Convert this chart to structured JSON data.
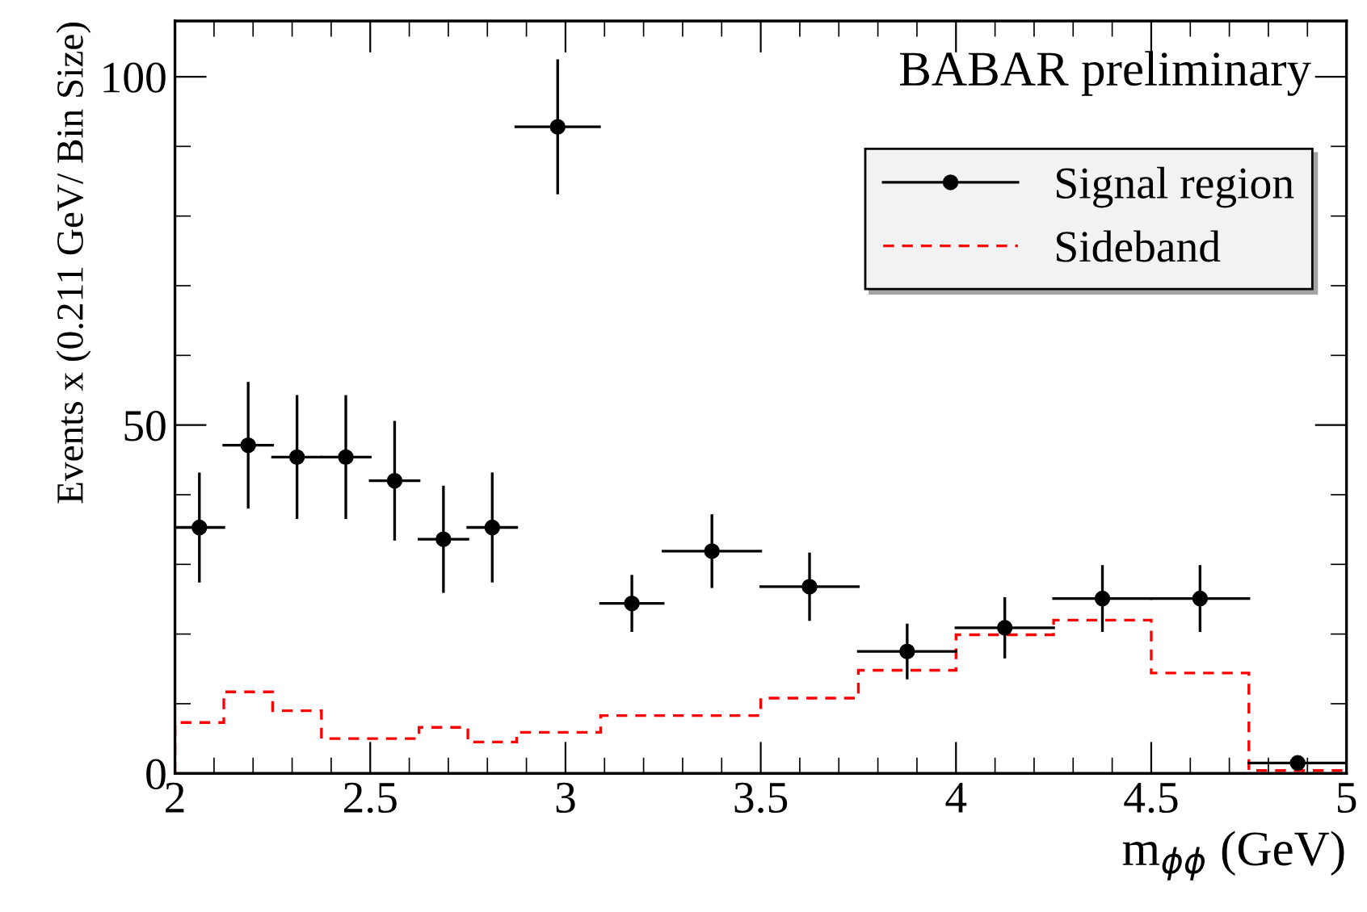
{
  "chart_data": {
    "type": "scatter",
    "xlabel": "m$_{ϕϕ}$ (GeV)",
    "ylabel": "Events x (0.211 GeV/ Bin Size)",
    "xlim": [
      2,
      5
    ],
    "xticks": [
      2,
      2.5,
      3,
      3.5,
      4,
      4.5,
      5
    ],
    "ylim": [
      0,
      108
    ],
    "yticks": [
      0,
      50,
      100
    ],
    "grid": false,
    "legend": "top right",
    "marker": "circle",
    "annotations": [
      "BABAR preliminary"
    ],
    "series": [
      {
        "name": "Signal region",
        "color": "#000000",
        "x": [
          2.0625,
          2.1875,
          2.3125,
          2.4375,
          2.5625,
          2.6875,
          2.8125,
          2.98,
          3.17,
          3.375,
          3.625,
          3.875,
          4.125,
          4.375,
          4.625,
          4.875
        ],
        "values": [
          35.3,
          47.1,
          45.4,
          45.4,
          42.0,
          33.6,
          35.3,
          92.8,
          24.4,
          31.9,
          26.8,
          17.5,
          20.9,
          25.1,
          25.1,
          1.5
        ],
        "errors": [
          7.7,
          8.9,
          8.7,
          8.7,
          8.4,
          7.5,
          7.7,
          9.5,
          3.9,
          5.1,
          4.7,
          3.8,
          4.2,
          4.6,
          4.6,
          null
        ],
        "xerrors": [
          0.0625,
          0.0625,
          0.0625,
          0.0625,
          0.0625,
          0.0625,
          0.0625,
          0.107,
          0.08,
          0.125,
          0.125,
          0.125,
          0.125,
          0.125,
          0.125,
          0.125
        ]
      },
      {
        "name": "Sideband",
        "type": "histogram",
        "color": "#ff0000",
        "line_style": "dashed",
        "bins": [
          2.0,
          2.125,
          2.25,
          2.375,
          2.5,
          2.625,
          2.75,
          2.875,
          3.09,
          3.5,
          3.75,
          4.0,
          4.25,
          4.5,
          4.75,
          5.0
        ],
        "values": [
          7.3,
          11.7,
          9.0,
          5.0,
          5.0,
          6.6,
          4.5,
          5.9,
          8.3,
          10.8,
          14.8,
          19.9,
          22.0,
          14.4,
          0.4
        ]
      }
    ]
  }
}
